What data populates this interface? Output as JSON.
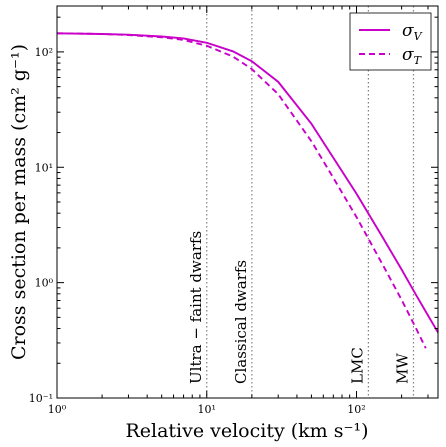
{
  "chart_data": {
    "type": "line",
    "xlabel": "Relative velocity (km s⁻¹)",
    "ylabel": "Cross section per mass (cm² g⁻¹)",
    "xscale": "log",
    "yscale": "log",
    "xlim": [
      1,
      350
    ],
    "ylim": [
      0.1,
      250
    ],
    "x_ticks": [
      {
        "value": 1,
        "label": "10⁰"
      },
      {
        "value": 10,
        "label": "10¹"
      },
      {
        "value": 100,
        "label": "10²"
      }
    ],
    "y_ticks": [
      {
        "value": 0.1,
        "label": "10⁻¹"
      },
      {
        "value": 1,
        "label": "10⁰"
      },
      {
        "value": 10,
        "label": "10¹"
      },
      {
        "value": 100,
        "label": "10²"
      }
    ],
    "grid": false,
    "legend_position": "top-right",
    "series": [
      {
        "name": "σ_V",
        "style": "solid",
        "color": "#c800c8",
        "x": [
          1,
          2,
          3,
          5,
          7,
          10,
          15,
          20,
          30,
          50,
          70,
          100,
          150,
          200,
          250,
          300,
          350
        ],
        "y": [
          145,
          143,
          141,
          136,
          131,
          120,
          101,
          83,
          55,
          23.8,
          12.1,
          5.9,
          2.45,
          1.3,
          0.78,
          0.52,
          0.37
        ]
      },
      {
        "name": "σ_T",
        "style": "dashed",
        "color": "#c800c8",
        "x": [
          1,
          2,
          3,
          5,
          7,
          10,
          15,
          20,
          30,
          50,
          70,
          100,
          150,
          200,
          250,
          290
        ],
        "y": [
          145,
          143,
          140,
          134,
          127,
          113,
          91,
          71,
          43,
          16.8,
          8.1,
          3.7,
          1.42,
          0.71,
          0.4,
          0.27
        ]
      }
    ],
    "vertical_markers": [
      {
        "x": 10,
        "label": "Ultra − faint dwarfs"
      },
      {
        "x": 20,
        "label": "Classical dwarfs"
      },
      {
        "x": 120,
        "label": "LMC"
      },
      {
        "x": 240,
        "label": "MW"
      }
    ],
    "legend": [
      {
        "label_main": "σ",
        "label_sub": "V",
        "style": "solid"
      },
      {
        "label_main": "σ",
        "label_sub": "T",
        "style": "dashed"
      }
    ]
  }
}
